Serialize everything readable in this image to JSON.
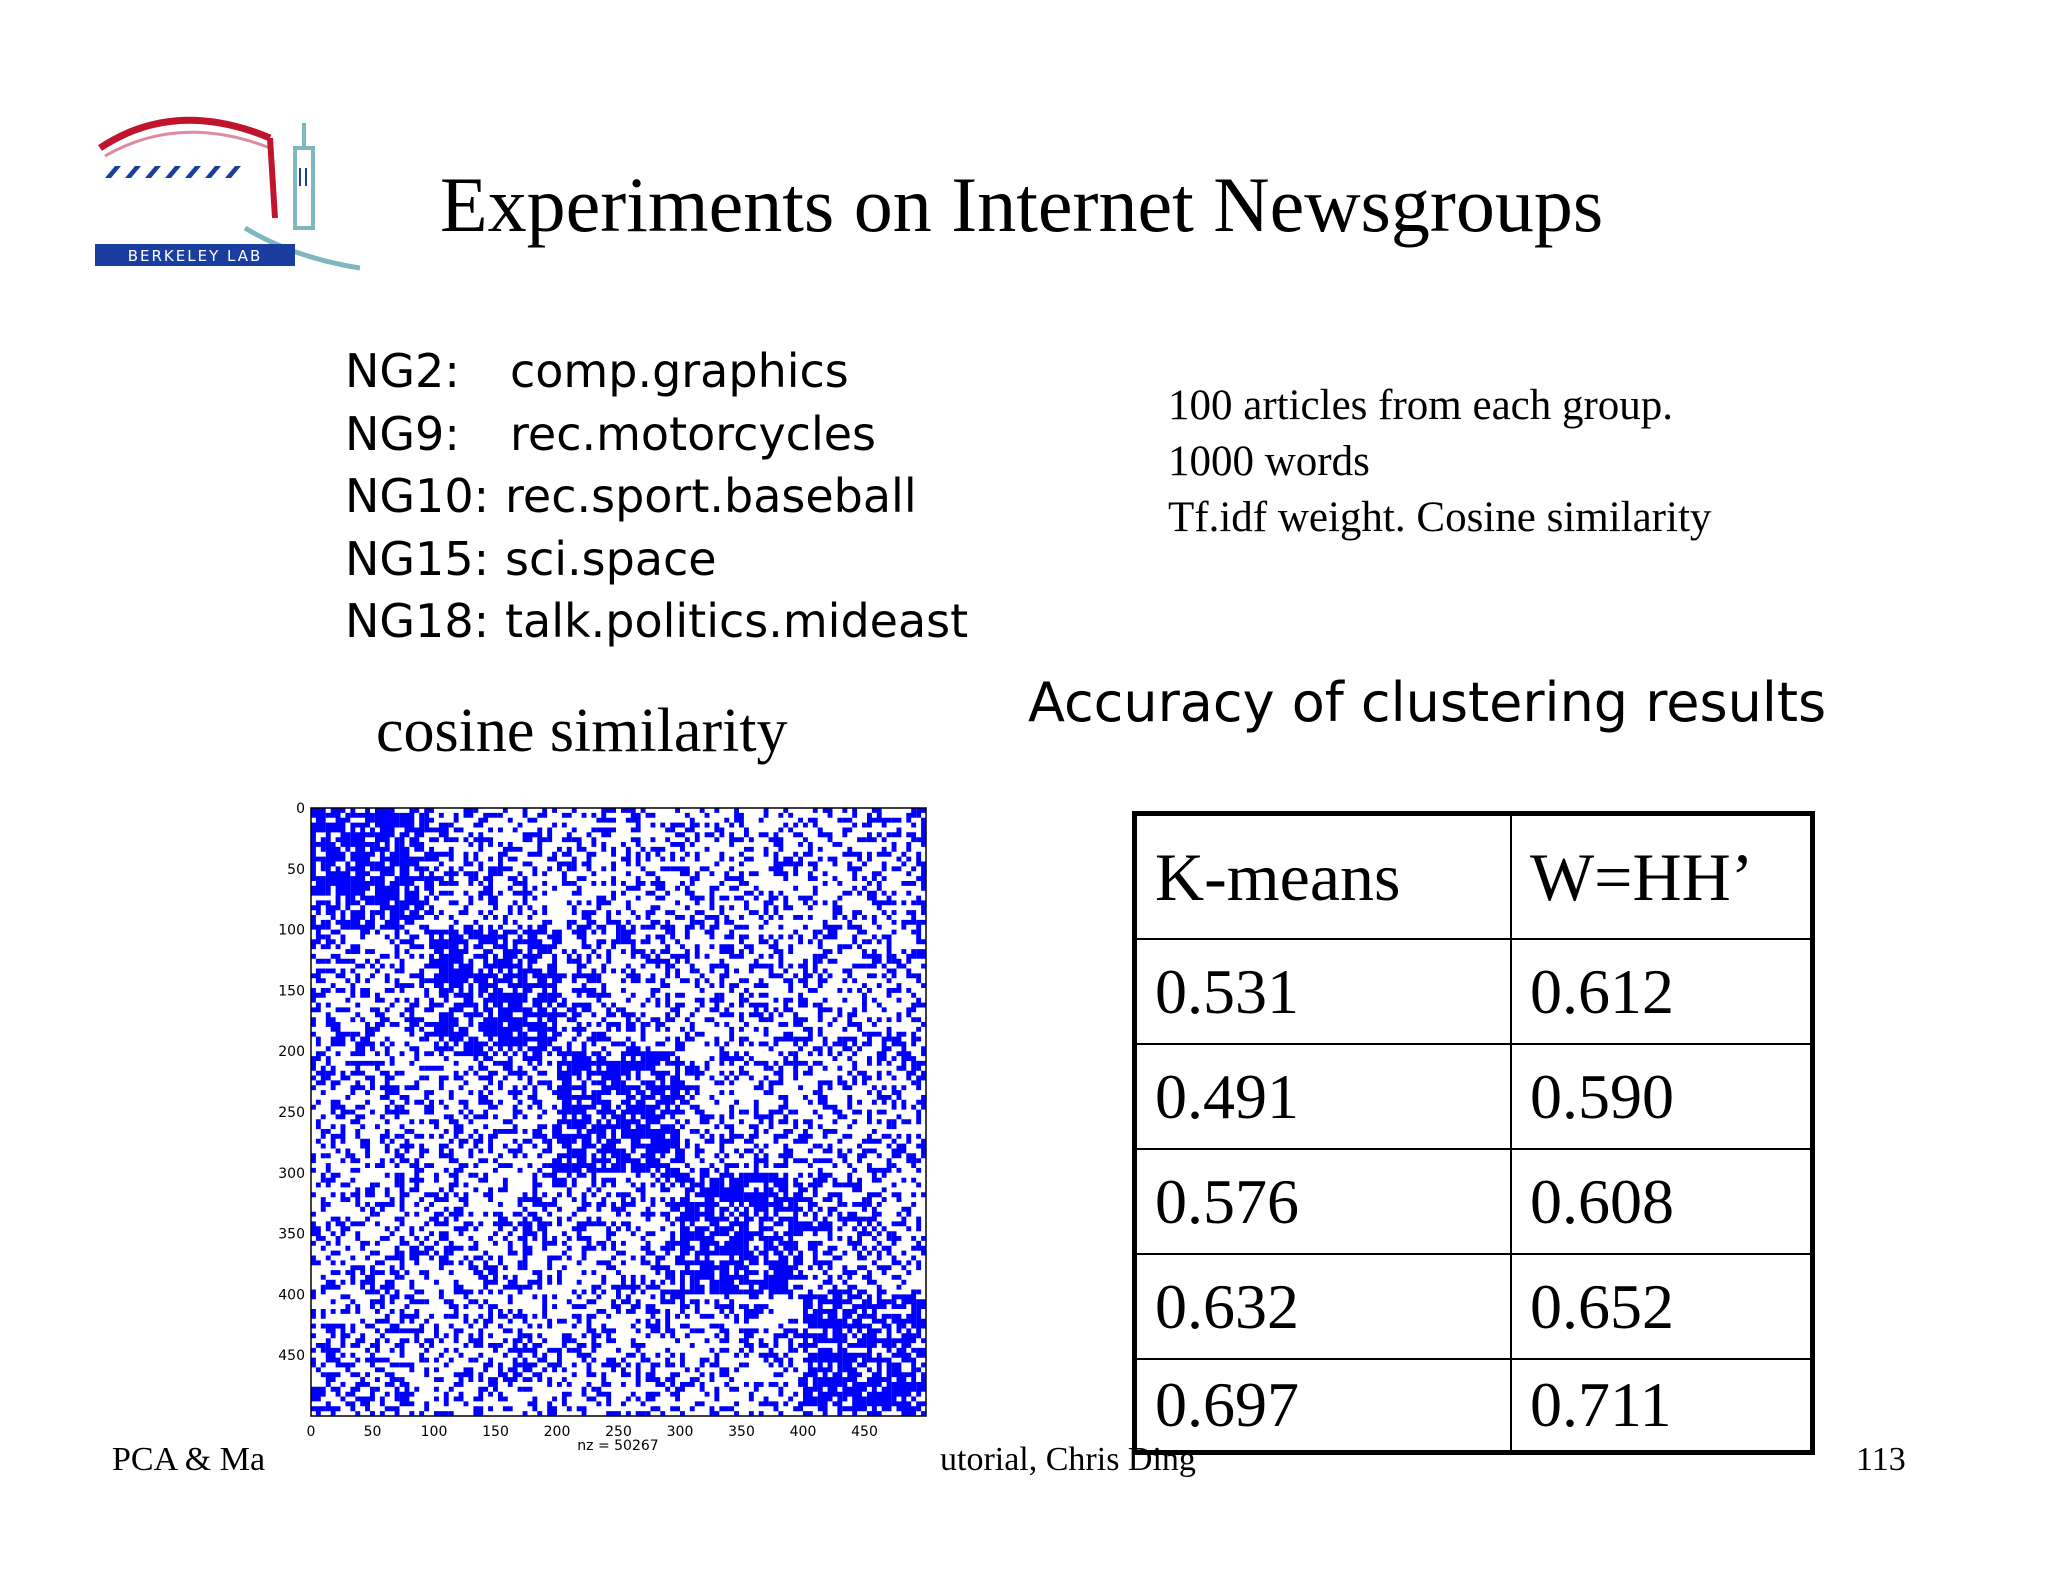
{
  "slide": {
    "title": "Experiments on Internet Newsgroups",
    "page_number": "113",
    "footer_left": "PCA & Ma",
    "footer_mid": "utorial, Chris Ding"
  },
  "logo": {
    "text": "BERKELEY LAB",
    "colors": {
      "arch": "#c0142d",
      "blue": "#1a3ea0",
      "teal": "#7fb7be"
    }
  },
  "newsgroups": [
    {
      "code": "NG2:",
      "name": "comp.graphics"
    },
    {
      "code": "NG9:",
      "name": "rec.motorcycles"
    },
    {
      "code": "NG10:",
      "name": "rec.sport.baseball"
    },
    {
      "code": "NG15:",
      "name": "sci.space"
    },
    {
      "code": "NG18:",
      "name": "talk.politics.mideast"
    }
  ],
  "notes": [
    "100 articles from each group.",
    "1000 words",
    "Tf.idf weight. Cosine similarity"
  ],
  "cosine_label": "cosine similarity",
  "accuracy_label": "Accuracy of clustering results",
  "chart_data": {
    "type": "heatmap",
    "title": "",
    "xlabel": "nz = 50267",
    "x_ticks": [
      "0",
      "50",
      "100",
      "150",
      "200",
      "250",
      "300",
      "350",
      "400",
      "450"
    ],
    "y_ticks": [
      "0",
      "50",
      "100",
      "150",
      "200",
      "250",
      "300",
      "350",
      "400",
      "450"
    ],
    "xlim": [
      0,
      500
    ],
    "ylim": [
      0,
      500
    ],
    "y_inverted": true,
    "color": "#0000ff",
    "blocks": [
      [
        0,
        100
      ],
      [
        100,
        200
      ],
      [
        200,
        300
      ],
      [
        300,
        400
      ],
      [
        400,
        500
      ]
    ],
    "block_density": 0.72,
    "background_density": 0.35
  },
  "results_table": {
    "headers": [
      "K-means",
      "W=HH’"
    ],
    "rows": [
      [
        "0.531",
        "0.612"
      ],
      [
        "0.491",
        "0.590"
      ],
      [
        "0.576",
        "0.608"
      ],
      [
        "0.632",
        "0.652"
      ],
      [
        "0.697",
        "0.711"
      ]
    ]
  }
}
